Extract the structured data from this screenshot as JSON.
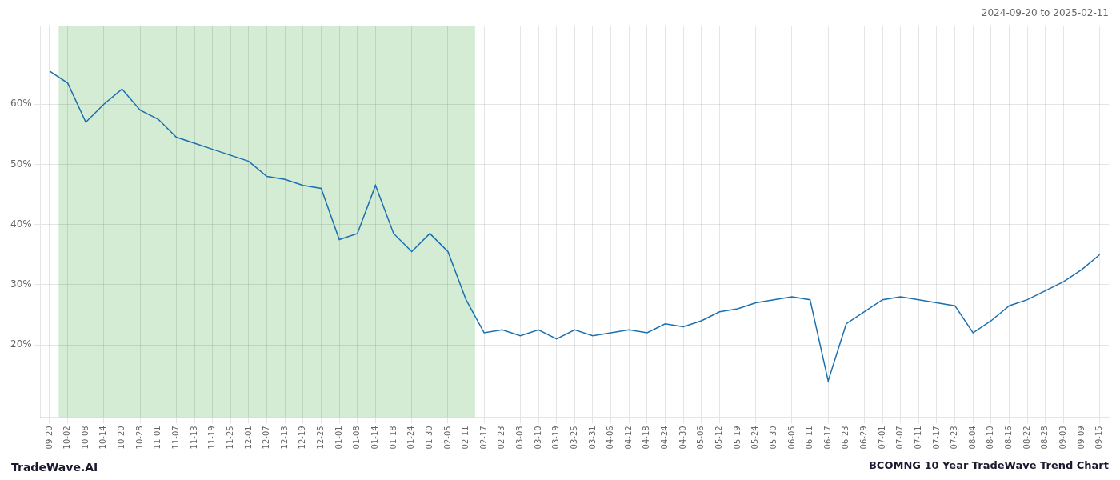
{
  "chart_data": {
    "type": "line",
    "title": "BCOMNG 10 Year TradeWave Trend Chart",
    "subtitle": "2024-09-20 to 2025-02-11",
    "annotations": [
      "TradeWave.AI"
    ],
    "categories": [
      "09-20",
      "10-02",
      "10-08",
      "10-14",
      "10-20",
      "10-28",
      "11-01",
      "11-07",
      "11-13",
      "11-19",
      "11-25",
      "12-01",
      "12-07",
      "12-13",
      "12-19",
      "12-25",
      "01-01",
      "01-08",
      "01-14",
      "01-18",
      "01-24",
      "01-30",
      "02-05",
      "02-11",
      "02-17",
      "02-23",
      "03-03",
      "03-10",
      "03-19",
      "03-25",
      "03-31",
      "04-06",
      "04-12",
      "04-18",
      "04-24",
      "04-30",
      "05-06",
      "05-12",
      "05-19",
      "05-24",
      "05-30",
      "06-05",
      "06-11",
      "06-17",
      "06-23",
      "06-29",
      "07-01",
      "07-07",
      "07-11",
      "07-17",
      "07-23",
      "08-04",
      "08-10",
      "08-16",
      "08-22",
      "08-28",
      "09-03",
      "09-09",
      "09-15"
    ],
    "values": [
      65.5,
      63.5,
      57.0,
      60.0,
      62.5,
      59.0,
      57.5,
      54.5,
      53.5,
      52.5,
      51.5,
      50.5,
      48.0,
      47.5,
      46.5,
      46.0,
      37.5,
      38.5,
      46.5,
      38.5,
      35.5,
      38.5,
      35.5,
      27.5,
      22.0,
      22.5,
      21.5,
      22.5,
      21.0,
      22.5,
      21.5,
      22.0,
      22.5,
      22.0,
      23.5,
      23.0,
      24.0,
      25.5,
      26.0,
      27.0,
      27.5,
      28.0,
      27.5,
      14.0,
      23.5,
      25.5,
      27.5,
      28.0,
      27.5,
      27.0,
      26.5,
      22.0,
      24.0,
      26.5,
      27.5,
      29.0,
      30.5,
      32.5,
      35.0
    ],
    "color": "#1a6faf",
    "shaded_span": {
      "from": "10-02",
      "to": "02-11",
      "color": "#d4ecd4"
    },
    "ylim": [
      8,
      73
    ],
    "yticks": [
      {
        "value": 20,
        "label": "20%"
      },
      {
        "value": 30,
        "label": "30%"
      },
      {
        "value": 40,
        "label": "40%"
      },
      {
        "value": 50,
        "label": "50%"
      },
      {
        "value": 60,
        "label": "60%"
      }
    ],
    "grid": true
  }
}
